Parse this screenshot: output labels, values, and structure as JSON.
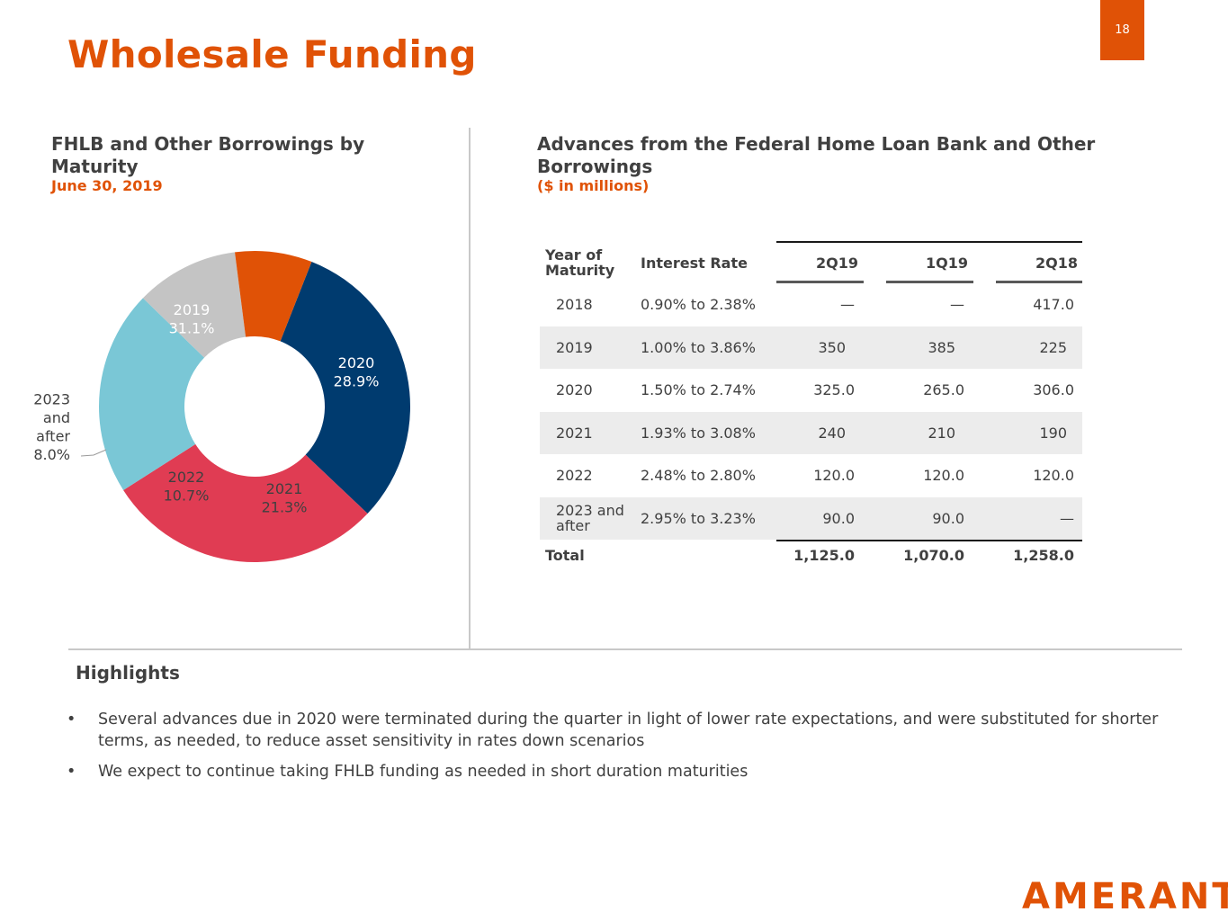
{
  "page": {
    "number": "18",
    "title": "Wholesale Funding",
    "logo": "AMERANT"
  },
  "left_panel": {
    "title": "FHLB and Other Borrowings by Maturity",
    "subtitle": "June 30, 2019"
  },
  "chart_data": {
    "type": "pie",
    "style": "donut",
    "title": "FHLB and Other Borrowings by Maturity",
    "subtitle": "June 30, 2019",
    "categories": [
      "2019",
      "2020",
      "2021",
      "2022",
      "2023 and after"
    ],
    "values": [
      31.1,
      28.9,
      21.3,
      10.7,
      8.0
    ],
    "value_labels": [
      "31.1%",
      "28.9%",
      "21.3%",
      "10.7%",
      "8.0%"
    ],
    "label_lines": [
      [
        "2019"
      ],
      [
        "2020"
      ],
      [
        "2021"
      ],
      [
        "2022"
      ],
      [
        "2023",
        "and",
        "after"
      ]
    ],
    "colors": [
      "#003b6f",
      "#e03c53",
      "#7ac7d6",
      "#c4c4c4",
      "#e05206"
    ],
    "label_colors": [
      "#ffffff",
      "#ffffff",
      "#404040",
      "#404040",
      "#404040"
    ],
    "start_angle_deg": -90
  },
  "table": {
    "title": "Advances from the Federal Home Loan Bank and Other Borrowings",
    "subtitle": "($ in millions)",
    "headers": {
      "year": "Year of Maturity",
      "rate": "Interest Rate",
      "c1": "2Q19",
      "c2": "1Q19",
      "c3": "2Q18"
    },
    "rows": [
      {
        "year": "2018",
        "rate": "0.90% to 2.38%",
        "v1": "—",
        "v2": "—",
        "v3": "417.0"
      },
      {
        "year": "2019",
        "rate": "1.00% to 3.86%",
        "v1": "350",
        "v2": "385",
        "v3": "225"
      },
      {
        "year": "2020",
        "rate": "1.50% to 2.74%",
        "v1": "325.0",
        "v2": "265.0",
        "v3": "306.0"
      },
      {
        "year": "2021",
        "rate": "1.93% to 3.08%",
        "v1": "240",
        "v2": "210",
        "v3": "190"
      },
      {
        "year": "2022",
        "rate": "2.48% to 2.80%",
        "v1": "120.0",
        "v2": "120.0",
        "v3": "120.0"
      },
      {
        "year": "2023 and after",
        "rate": "2.95% to 3.23%",
        "v1": "90.0",
        "v2": "90.0",
        "v3": "—"
      }
    ],
    "total": {
      "label": "Total",
      "v1": "1,125.0",
      "v2": "1,070.0",
      "v3": "1,258.0"
    }
  },
  "highlights": {
    "title": "Highlights",
    "bullet_char": "•",
    "bullets": [
      "Several advances due in 2020 were terminated during the quarter in light of lower rate expectations, and were substituted for shorter terms, as needed, to reduce asset sensitivity in rates down scenarios",
      "We expect to continue taking FHLB funding as needed in short duration maturities"
    ]
  }
}
